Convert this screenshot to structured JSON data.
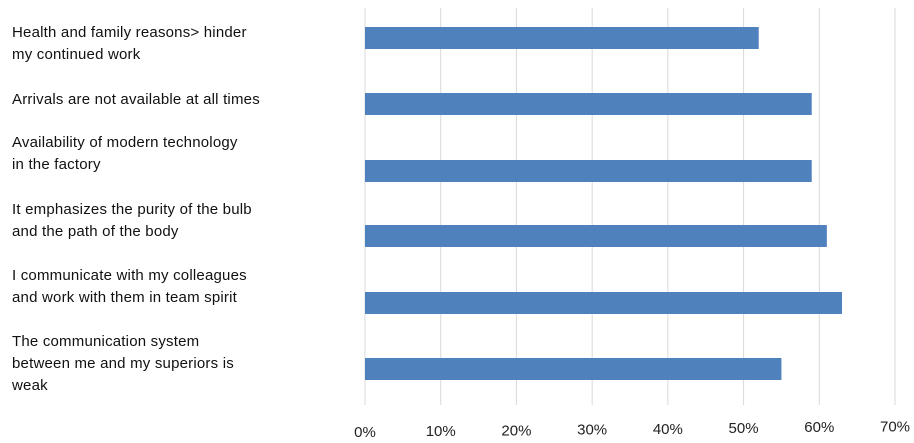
{
  "chart_data": {
    "type": "bar",
    "orientation": "horizontal",
    "title": "",
    "xlabel": "",
    "ylabel": "",
    "categories": [
      "Health and family reasons> hinder\nmy continued work",
      "Arrivals are not available at all times",
      "Availability of modern technology\nin the factory",
      "It emphasizes the purity of the bulb\nand the path of the body",
      "I communicate with my colleagues\nand work with them in team spirit",
      "The communication system\nbetween me and my superiors is\nweak"
    ],
    "values": [
      52,
      59,
      59,
      61,
      63,
      55
    ],
    "xlim": [
      0,
      70
    ],
    "x_tick_labels": [
      "0%",
      "10%",
      "20%",
      "30%",
      "40%",
      "50%",
      "60%",
      "70%"
    ],
    "grid": "vertical",
    "legend": "none",
    "bar_color": "#4f81bd",
    "grid_color": "#d9d9d9"
  }
}
